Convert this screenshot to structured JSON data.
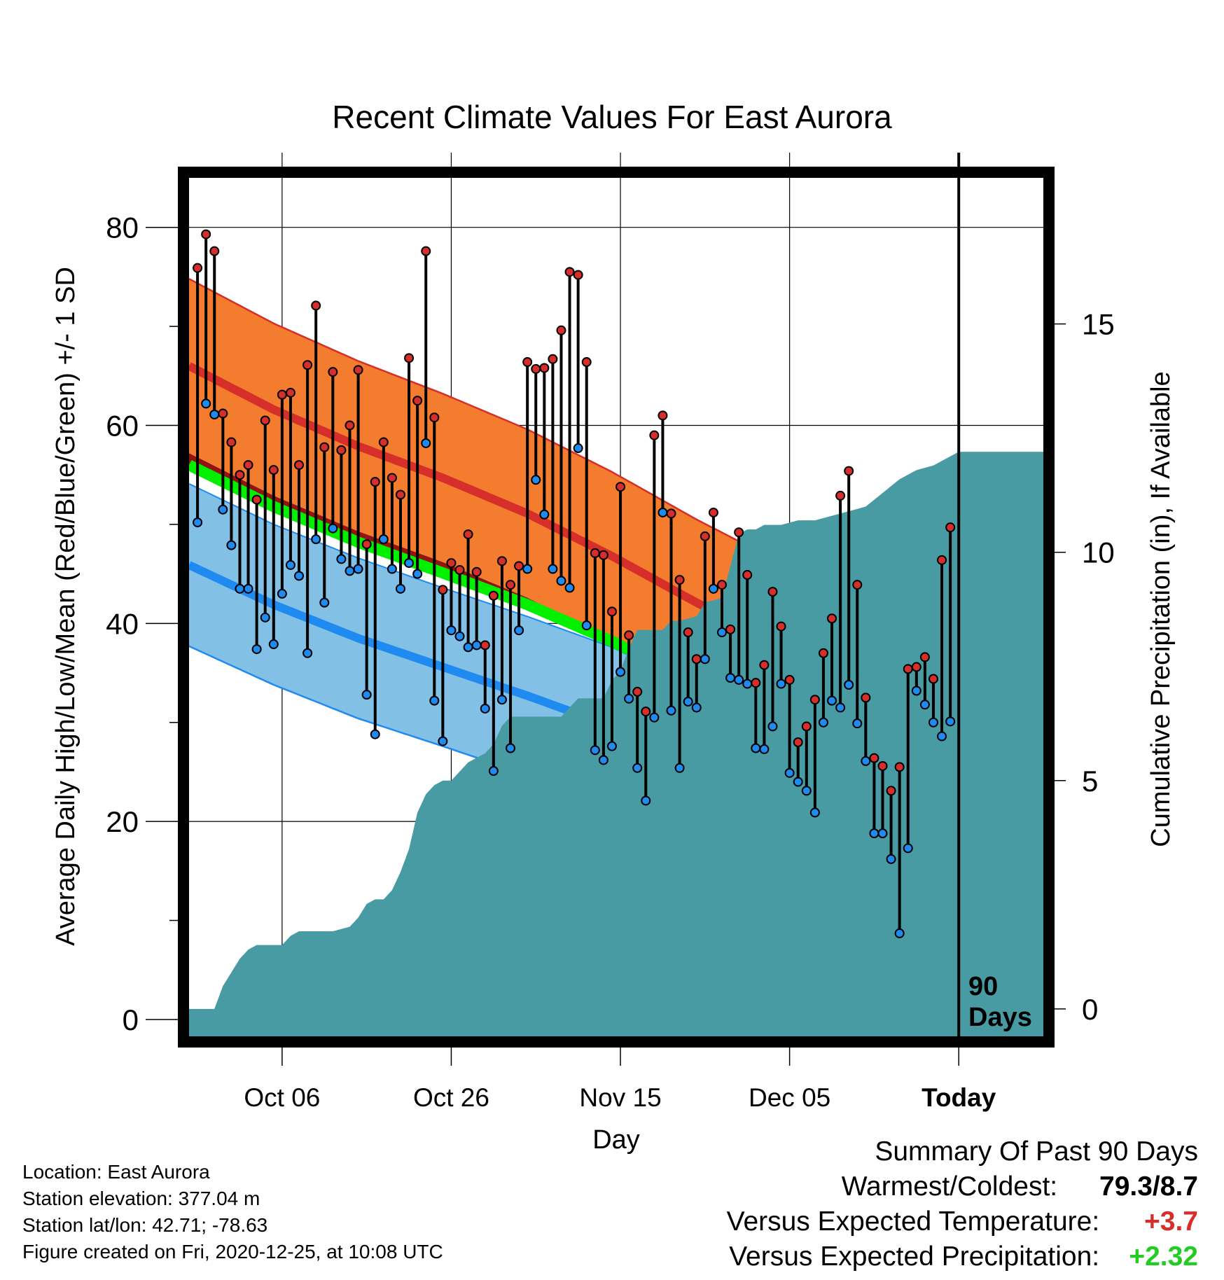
{
  "chart_data": {
    "type": "line",
    "title": "Recent Climate Values For East Aurora",
    "xlabel": "Day",
    "ylabel": "Average Daily High/Low/Mean (Red/Blue/Green) +/- 1 SD",
    "y2label": "Cumulative Precipitation (in), If Available",
    "x_tick_labels": [
      "Oct 06",
      "Oct 26",
      "Nov 15",
      "Dec 05",
      "Today"
    ],
    "x_tick_days": [
      11,
      31,
      51,
      71,
      91
    ],
    "x_range_days": [
      0,
      101
    ],
    "y_ticks": [
      0,
      20,
      40,
      60,
      80
    ],
    "y_range": [
      -1.7,
      85
    ],
    "y2_ticks": [
      0,
      5,
      10,
      15
    ],
    "y2_range": [
      -0.6,
      18.2
    ],
    "today_marker": "90\nDays",
    "today_label_line1": "90",
    "today_label_line2": "Days",
    "grid": true,
    "colors": {
      "high_band": "#f47c2e",
      "high_mean_line": "#d62e2a",
      "low_band": "#82c0e6",
      "low_mean_line": "#1f8af0",
      "mean_line": "#00f000",
      "warm_mean_region": "#931313",
      "precip_fill": "#489aa3",
      "high_dot": "#d62e2a",
      "low_dot": "#1f8af0"
    },
    "normals": {
      "days": [
        0,
        10,
        20,
        30,
        40,
        50,
        60,
        70,
        80,
        90,
        101
      ],
      "high_mean": [
        66,
        61.6,
        57.9,
        54.7,
        51.1,
        46.8,
        42.1,
        37.9,
        34.4,
        32.2,
        30.5
      ],
      "high_sd": [
        8.8,
        8.7,
        8.6,
        8.5,
        8.5,
        8.5,
        8.4,
        8.2,
        9.1,
        10.3,
        11.5
      ],
      "low_mean": [
        45.9,
        41.9,
        38.5,
        35.6,
        32.7,
        29.6,
        25.6,
        21.9,
        18.9,
        16.7,
        14.9
      ],
      "low_sd": [
        8.2,
        8.1,
        8.1,
        8.0,
        8.0,
        8.0,
        7.8,
        7.5,
        7.2,
        6.9,
        6.9
      ],
      "mean": [
        56.0,
        51.8,
        48.2,
        45.1,
        41.9,
        38.2,
        33.9,
        29.9,
        26.7,
        24.4,
        22.7
      ]
    },
    "series": [
      {
        "name": "High",
        "values": [
          75.9,
          79.3,
          77.6,
          61.2,
          58.3,
          55,
          56,
          52.5,
          60.5,
          55.5,
          63.1,
          63.3,
          56,
          66.1,
          72.1,
          57.8,
          65.4,
          57.5,
          60,
          65.6,
          48,
          54.3,
          58.3,
          54.7,
          53,
          66.8,
          62.5,
          77.6,
          60.8,
          43.4,
          46.1,
          45.4,
          49,
          45.2,
          37.8,
          42.8,
          46.3,
          43.9,
          45.8,
          66.4,
          65.7,
          65.8,
          66.7,
          69.6,
          75.5,
          75.2,
          66.4,
          47.1,
          46.9,
          41.2,
          53.8,
          38.8,
          33.1,
          31.1,
          59,
          61,
          51.1,
          44.4,
          39.1,
          36.4,
          48.8,
          51.2,
          43.9,
          39.4,
          49.2,
          44.9,
          34,
          35.8,
          43.2,
          39.7,
          34.3,
          28,
          29.6,
          32.3,
          37,
          40.5,
          52.9,
          55.4,
          43.9,
          32.5,
          26.4,
          25.6,
          23.1,
          25.5,
          35.4,
          35.6,
          36.6,
          34.4,
          46.4,
          49.7
        ]
      },
      {
        "name": "Low",
        "values": [
          50.2,
          62.2,
          61.1,
          51.5,
          47.9,
          43.5,
          43.5,
          37.4,
          40.6,
          37.9,
          43,
          45.9,
          44.8,
          37,
          48.5,
          42.1,
          49.6,
          46.5,
          45.3,
          45.5,
          32.8,
          28.8,
          48.5,
          45.5,
          43.5,
          46.1,
          45,
          58.2,
          32.2,
          28.1,
          39.3,
          38.7,
          37.6,
          37.8,
          31.4,
          25.1,
          32.3,
          27.4,
          39.3,
          45.5,
          54.5,
          51,
          45.5,
          44.3,
          43.6,
          57.7,
          39.8,
          27.2,
          26.2,
          27.6,
          35.1,
          32.4,
          25.4,
          22.1,
          30.5,
          51.2,
          31.2,
          25.4,
          32.1,
          31.5,
          36.4,
          43.5,
          39.1,
          34.5,
          34.3,
          33.9,
          27.4,
          27.3,
          29.6,
          33.9,
          24.9,
          24,
          23.1,
          20.9,
          30,
          32.2,
          31.5,
          33.8,
          29.9,
          26.1,
          18.8,
          18.8,
          16.2,
          8.7,
          17.3,
          33.2,
          31.8,
          30,
          28.6,
          30.1
        ]
      },
      {
        "name": "Cumulative Precipitation",
        "days": [
          0,
          3,
          4,
          5,
          6,
          7,
          8,
          10,
          11,
          12,
          13,
          15,
          17,
          19,
          20,
          21,
          22,
          23,
          24,
          25,
          26,
          27,
          28,
          29,
          30,
          31,
          32,
          33,
          34,
          35,
          36,
          37,
          38,
          41,
          44,
          46,
          47,
          49,
          50,
          51,
          52,
          53,
          54,
          56,
          57,
          58,
          60,
          61,
          63,
          65,
          66,
          67,
          68,
          70,
          72,
          74,
          76,
          78,
          80,
          82,
          84,
          86,
          88,
          91,
          101
        ],
        "values": [
          0,
          0,
          0.5,
          0.8,
          1.1,
          1.3,
          1.4,
          1.4,
          1.4,
          1.6,
          1.7,
          1.7,
          1.7,
          1.8,
          2.0,
          2.3,
          2.4,
          2.4,
          2.6,
          3.0,
          3.5,
          4.3,
          4.7,
          4.9,
          5.0,
          5.0,
          5.2,
          5.4,
          5.5,
          5.6,
          5.8,
          6.2,
          6.4,
          6.4,
          6.4,
          6.8,
          6.8,
          6.8,
          7.2,
          7.4,
          7.9,
          8.3,
          8.3,
          8.3,
          8.5,
          8.5,
          8.6,
          8.9,
          9.0,
          10.4,
          10.5,
          10.5,
          10.6,
          10.6,
          10.7,
          10.7,
          10.8,
          10.9,
          11.0,
          11.3,
          11.6,
          11.8,
          11.9,
          12.2,
          12.2
        ]
      }
    ]
  },
  "info": {
    "location": "Location: East Aurora",
    "elevation": "Station elevation: 377.04 m",
    "latlon": "Station lat/lon: 42.71; -78.63",
    "created": "Figure created on Fri, 2020-12-25, at 10:08 UTC"
  },
  "summary": {
    "title": "Summary Of Past 90 Days",
    "warmest_label": "Warmest/Coldest:",
    "warmest_value": "79.3/8.7",
    "temp_label": "Versus Expected Temperature:",
    "temp_value": "+3.7",
    "temp_color": "#d62e2a",
    "precip_label": "Versus Expected Precipitation:",
    "precip_value": "+2.32",
    "precip_color": "#22cc22"
  }
}
